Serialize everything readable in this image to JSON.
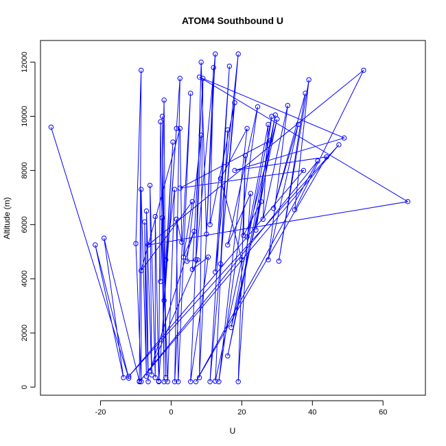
{
  "chart_data": {
    "type": "line",
    "title": "ATOM4 Southbound U",
    "xlabel": "U",
    "ylabel": "Altitude (m)",
    "xlim": [
      -37,
      72
    ],
    "ylim": [
      -300,
      12800
    ],
    "xticks": [
      -20,
      0,
      20,
      40,
      60
    ],
    "yticks": [
      0,
      2000,
      4000,
      6000,
      8000,
      10000,
      12000
    ],
    "grid": false,
    "line_color": "#0000ff",
    "marker": "open-circle",
    "series": [
      {
        "points": [
          [
            -34,
            9600
          ],
          [
            -12,
            330
          ],
          [
            -21.5,
            5250
          ],
          [
            -13.5,
            350
          ],
          [
            -19,
            5500
          ],
          [
            -9,
            220
          ],
          [
            -8.5,
            11700
          ],
          [
            -10,
            5300
          ],
          [
            -8.5,
            200
          ],
          [
            -8.5,
            7300
          ],
          [
            -7,
            400
          ],
          [
            -7.5,
            6100
          ],
          [
            -6.5,
            200
          ],
          [
            -7,
            6500
          ],
          [
            -5.5,
            450
          ],
          [
            -6,
            7450
          ],
          [
            -4.5,
            350
          ],
          [
            -4.5,
            6300
          ],
          [
            -3.5,
            220
          ],
          [
            -3,
            9800
          ],
          [
            -2,
            200
          ],
          [
            -2.5,
            10000
          ],
          [
            -1.5,
            350
          ],
          [
            -2,
            10600
          ],
          [
            -3,
            3900
          ],
          [
            -2.5,
            6250
          ],
          [
            -1,
            200
          ],
          [
            1,
            7300
          ],
          [
            -1.5,
            4700
          ],
          [
            0.5,
            9050
          ],
          [
            -2,
            3200
          ],
          [
            1.5,
            9550
          ],
          [
            -3.5,
            200
          ],
          [
            2.5,
            11400
          ],
          [
            1,
            200
          ],
          [
            5.5,
            10850
          ],
          [
            2,
            200
          ],
          [
            1.5,
            6200
          ],
          [
            3,
            5350
          ],
          [
            2.5,
            9550
          ],
          [
            -8.5,
            4300
          ],
          [
            6,
            6850
          ],
          [
            3.5,
            4800
          ],
          [
            6.5,
            5750
          ],
          [
            -6,
            600
          ],
          [
            7.5,
            4700
          ],
          [
            4.5,
            4650
          ],
          [
            8.5,
            9300
          ],
          [
            5.5,
            200
          ],
          [
            10.5,
            4800
          ],
          [
            6,
            4350
          ],
          [
            9,
            11400
          ],
          [
            8,
            350
          ],
          [
            12.5,
            12300
          ],
          [
            7,
            4700
          ],
          [
            8.5,
            12000
          ],
          [
            10,
            5650
          ],
          [
            12,
            11800
          ],
          [
            11,
            6000
          ],
          [
            18,
            10500
          ],
          [
            11,
            200
          ],
          [
            16.5,
            11850
          ],
          [
            12.5,
            4250
          ],
          [
            19,
            12300
          ],
          [
            14,
            4550
          ],
          [
            16,
            9500
          ],
          [
            12.5,
            220
          ],
          [
            20,
            4700
          ],
          [
            14,
            7700
          ],
          [
            21.5,
            9550
          ],
          [
            13.5,
            200
          ],
          [
            24.5,
            10350
          ],
          [
            16,
            5250
          ],
          [
            22.5,
            7150
          ],
          [
            19,
            200
          ],
          [
            21,
            8550
          ],
          [
            20.5,
            5600
          ],
          [
            25.5,
            6850
          ],
          [
            17,
            2200
          ],
          [
            28.5,
            10000
          ],
          [
            24,
            5800
          ],
          [
            29.5,
            10050
          ],
          [
            16,
            1150
          ],
          [
            30,
            9900
          ],
          [
            21.5,
            5550
          ],
          [
            27.5,
            9700
          ],
          [
            26,
            6200
          ],
          [
            33,
            10400
          ],
          [
            27.5,
            4700
          ],
          [
            36,
            9700
          ],
          [
            29,
            6600
          ],
          [
            38,
            10850
          ],
          [
            30.5,
            4650
          ],
          [
            39,
            11350
          ],
          [
            35,
            6550
          ],
          [
            54.5,
            11700
          ],
          [
            -6.5,
            5250
          ],
          [
            67,
            6850
          ],
          [
            8,
            11450
          ],
          [
            49,
            9200
          ],
          [
            18,
            8000
          ],
          [
            44,
            8500
          ],
          [
            7,
            200
          ],
          [
            41.5,
            8350
          ],
          [
            -9,
            200
          ],
          [
            47.5,
            8950
          ],
          [
            -12,
            400
          ],
          [
            37.5,
            8000
          ],
          [
            2.5,
            7350
          ],
          [
            28,
            9100
          ]
        ]
      }
    ]
  }
}
